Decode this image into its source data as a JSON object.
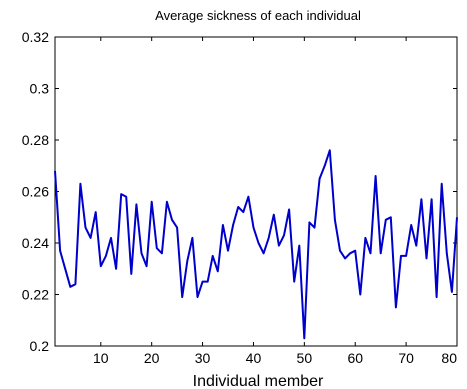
{
  "chart_data": {
    "type": "line",
    "title": "Average sickness of each individual",
    "xlabel": "Individual member",
    "ylabel": "",
    "xlim": [
      1,
      80
    ],
    "ylim": [
      0.2,
      0.32
    ],
    "xticks": [
      10,
      20,
      30,
      40,
      50,
      60,
      70,
      80
    ],
    "yticks": [
      0.2,
      0.22,
      0.24,
      0.26,
      0.28,
      0.3,
      0.32
    ],
    "ytick_labels": [
      "0.2",
      "0.22",
      "0.24",
      "0.26",
      "0.28",
      "0.3",
      "0.32"
    ],
    "grid": false,
    "line_color": "#0000cc",
    "series": [
      {
        "x": [
          1,
          2,
          3,
          4,
          5,
          6,
          7,
          8,
          9,
          10,
          11,
          12,
          13,
          14,
          15,
          16,
          17,
          18,
          19,
          20,
          21,
          22,
          23,
          24,
          25,
          26,
          27,
          28,
          29,
          30,
          31,
          32,
          33,
          34,
          35,
          36,
          37,
          38,
          39,
          40,
          41,
          42,
          43,
          44,
          45,
          46,
          47,
          48,
          49,
          50,
          51,
          52,
          53,
          54,
          55,
          56,
          57,
          58,
          59,
          60,
          61,
          62,
          63,
          64,
          65,
          66,
          67,
          68,
          69,
          70,
          71,
          72,
          73,
          74,
          75,
          76,
          77,
          78,
          79,
          80
        ],
        "values": [
          0.268,
          0.237,
          0.23,
          0.223,
          0.224,
          0.263,
          0.246,
          0.242,
          0.252,
          0.231,
          0.235,
          0.242,
          0.23,
          0.259,
          0.258,
          0.228,
          0.255,
          0.236,
          0.231,
          0.256,
          0.238,
          0.236,
          0.256,
          0.249,
          0.246,
          0.219,
          0.233,
          0.242,
          0.219,
          0.225,
          0.225,
          0.235,
          0.229,
          0.247,
          0.237,
          0.247,
          0.254,
          0.252,
          0.258,
          0.246,
          0.24,
          0.236,
          0.242,
          0.251,
          0.239,
          0.243,
          0.253,
          0.225,
          0.239,
          0.203,
          0.248,
          0.246,
          0.265,
          0.27,
          0.276,
          0.249,
          0.237,
          0.234,
          0.236,
          0.237,
          0.22,
          0.242,
          0.236,
          0.266,
          0.236,
          0.249,
          0.25,
          0.215,
          0.235,
          0.235,
          0.247,
          0.239,
          0.257,
          0.234,
          0.257,
          0.219,
          0.263,
          0.236,
          0.221,
          0.25
        ]
      }
    ]
  }
}
